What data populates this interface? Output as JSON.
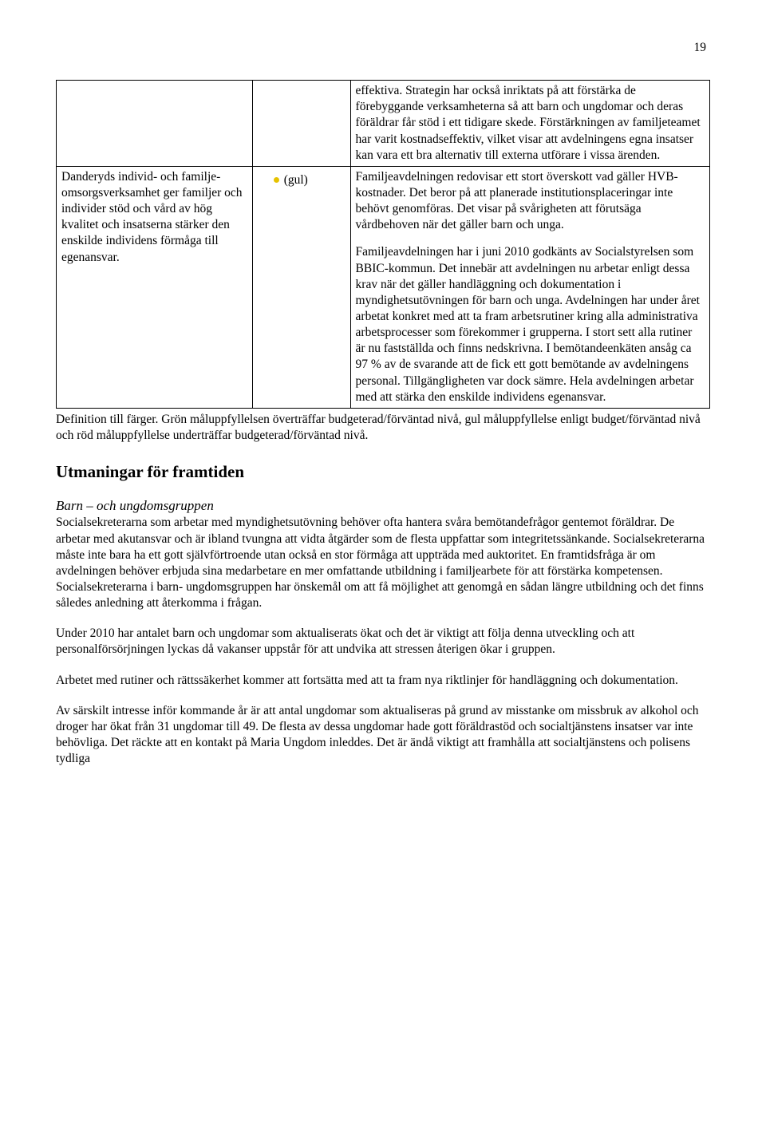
{
  "page_number": "19",
  "table": {
    "row1": {
      "left": "",
      "status_label": "",
      "right": "effektiva. Strategin har också inriktats på att förstärka de förebyggande verksamheterna så att barn och ungdomar och deras föräldrar får stöd i ett tidigare skede. Förstärkningen av familjeteamet har varit kostnadseffektiv, vilket visar att avdelningens egna insatser kan vara ett bra alternativ till externa utförare i vissa ärenden."
    },
    "row2": {
      "left": "Danderyds individ- och familje-omsorgsverksamhet ger familjer och individer stöd och vård av hög kvalitet och insatserna stärker den enskilde individens förmåga till egenansvar.",
      "bullet_color": "#e6c200",
      "status_label": "(gul)",
      "right_p1": "Familjeavdelningen redovisar ett stort överskott vad gäller HVB-kostnader. Det beror på att planerade institutionsplaceringar inte behövt genomföras. Det visar på svårigheten att förutsäga vårdbehoven när det gäller barn och unga.",
      "right_p2": "Familjeavdelningen har i juni 2010 godkänts av Socialstyrelsen som BBIC-kommun. Det innebär att avdelningen nu arbetar enligt dessa krav när det gäller handläggning och dokumentation i myndighetsutövningen för barn och unga. Avdelningen har under året arbetat konkret med att ta fram arbetsrutiner kring alla administrativa arbetsprocesser som förekommer i grupperna. I stort sett alla rutiner är nu fastställda och finns nedskrivna. I bemötandeenkäten ansåg ca 97 % av de svarande att de fick ett gott bemötande av avdelningens personal. Tillgängligheten var dock sämre. Hela avdelningen arbetar med att stärka den enskilde individens egenansvar."
    }
  },
  "definition": "Definition till färger. Grön måluppfyllelsen överträffar budgeterad/förväntad nivå, gul måluppfyllelse enligt budget/förväntad nivå och röd måluppfyllelse underträffar budgeterad/förväntad nivå.",
  "section_heading": "Utmaningar för framtiden",
  "subheading": "Barn – och ungdomsgruppen",
  "paragraphs": {
    "p1": "Socialsekreterarna som arbetar med myndighetsutövning behöver ofta hantera svåra bemötandefrågor gentemot föräldrar. De arbetar med akutansvar och är ibland tvungna att vidta åtgärder som de flesta uppfattar som integritetssänkande. Socialsekreterarna måste inte bara ha ett gott självförtroende utan också en stor förmåga att uppträda med auktoritet. En framtidsfråga är om avdelningen behöver erbjuda sina medarbetare en mer omfattande utbildning i familjearbete för att förstärka kompetensen. Socialsekreterarna i barn- ungdomsgruppen har önskemål om att få möjlighet att genomgå en sådan längre utbildning och det finns således anledning att återkomma i frågan.",
    "p2": "Under 2010 har antalet barn och ungdomar som aktualiserats ökat och det är viktigt att följa denna utveckling och att personalförsörjningen lyckas då vakanser uppstår för att undvika att stressen återigen ökar i gruppen.",
    "p3": "Arbetet med rutiner och rättssäkerhet kommer att fortsätta med att ta fram nya riktlinjer för handläggning och dokumentation.",
    "p4": "Av särskilt intresse inför kommande år är att antal ungdomar som aktualiseras på grund av misstanke om missbruk av alkohol och droger har ökat från 31 ungdomar till 49. De flesta av dessa ungdomar hade gott föräldrastöd och socialtjänstens insatser var inte behövliga. Det räckte att en kontakt på Maria Ungdom inleddes. Det är ändå viktigt att framhålla att socialtjänstens och polisens tydliga"
  }
}
